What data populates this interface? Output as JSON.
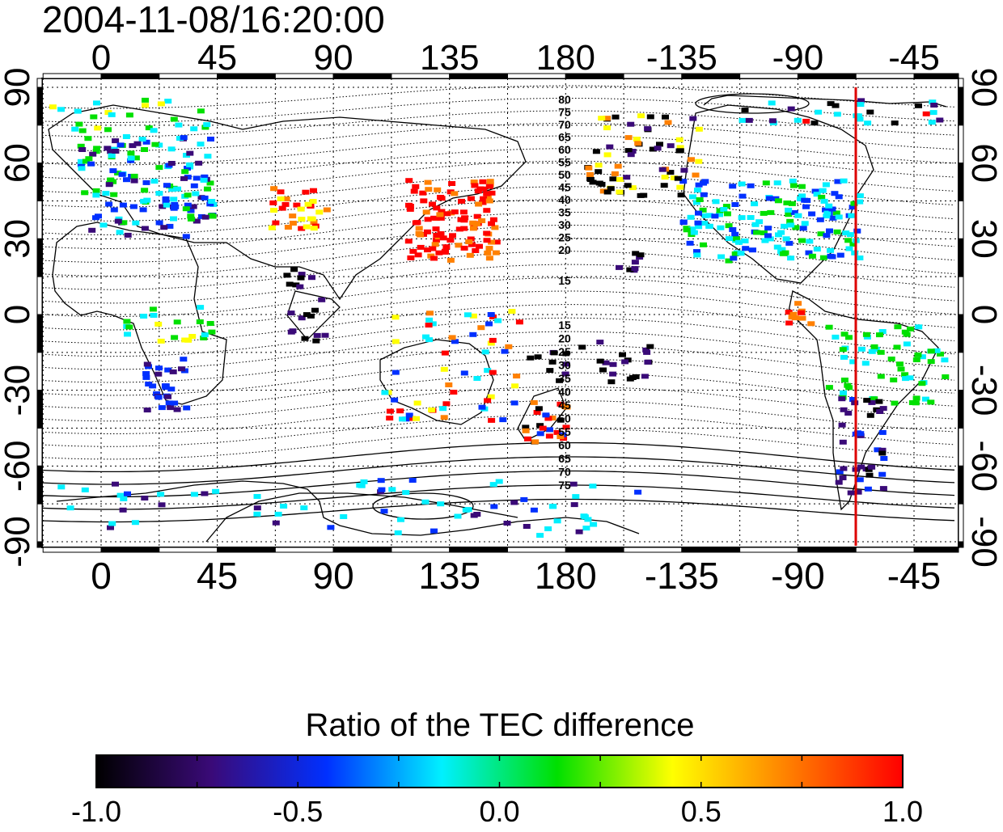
{
  "map": {
    "timestamp": "2004-11-08/16:20:00",
    "lon_ticks": [
      "0",
      "45",
      "90",
      "135",
      "180",
      "-135",
      "-90",
      "-45"
    ],
    "lat_ticks": [
      "90",
      "60",
      "30",
      "0",
      "-30",
      "-60",
      "-90"
    ],
    "contour_labels_north": [
      "80",
      "75",
      "70",
      "65",
      "60",
      "55",
      "50",
      "45",
      "40",
      "35",
      "30",
      "25",
      "20",
      "15"
    ],
    "contour_labels_south": [
      "15",
      "20",
      "25",
      "30",
      "35",
      "40",
      "45",
      "50",
      "55",
      "60",
      "65",
      "70",
      "75"
    ],
    "marker_color": "#dd0000"
  },
  "colorbar": {
    "title": "Ratio of the TEC difference",
    "tick_labels": [
      "-1.0",
      "-0.5",
      "0.0",
      "0.5",
      "1.0"
    ],
    "stops": [
      "#000000",
      "#3a0a78",
      "#0030ff",
      "#00f0ff",
      "#00e000",
      "#ffff00",
      "#ff8000",
      "#ff0000"
    ]
  }
}
